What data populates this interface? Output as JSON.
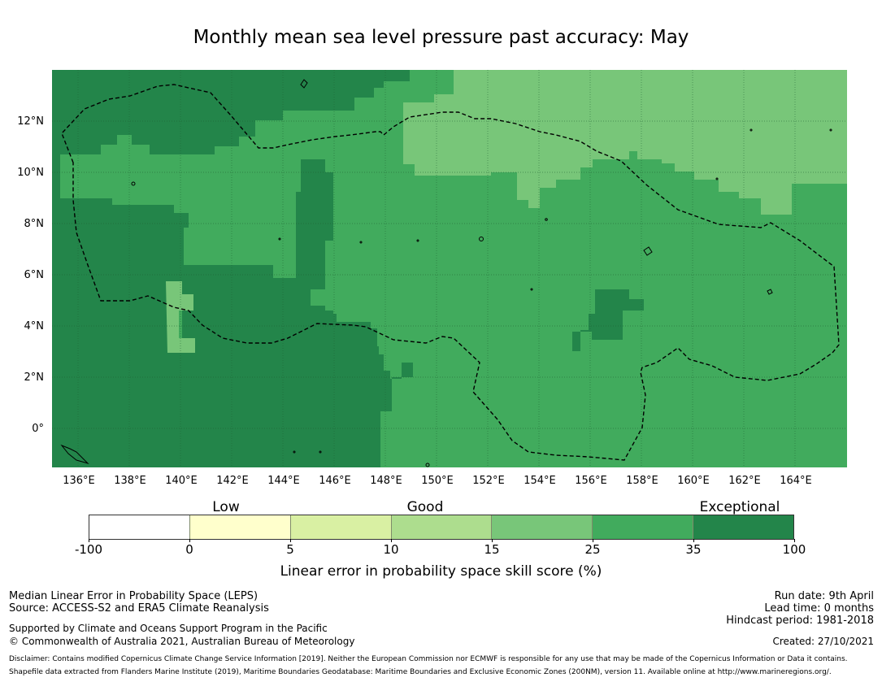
{
  "title": "Monthly mean sea level pressure past accuracy: May",
  "map": {
    "lat_ticks": [
      "12°N",
      "10°N",
      "8°N",
      "6°N",
      "4°N",
      "2°N",
      "0°"
    ],
    "lon_ticks": [
      "136°E",
      "138°E",
      "140°E",
      "142°E",
      "144°E",
      "146°E",
      "148°E",
      "150°E",
      "152°E",
      "154°E",
      "156°E",
      "158°E",
      "160°E",
      "162°E",
      "164°E"
    ],
    "extent": {
      "lon_min": 134.9,
      "lon_max": 165.9,
      "lat_min": -1.5,
      "lat_max": 14.0
    },
    "colors": {
      "skill_35_100": "#23854a",
      "skill_25_35": "#41ab5d",
      "skill_15_25": "#78c679",
      "border_line": "#000000",
      "gridline": "#1f5f32"
    }
  },
  "legend": {
    "categories": [
      {
        "label": "Low",
        "at_value": "0-5"
      },
      {
        "label": "Good",
        "at_value": "10-15"
      },
      {
        "label": "Exceptional",
        "at_value": "35-100"
      }
    ],
    "bins": [
      {
        "range": "-100 to 0",
        "color": "#ffffff"
      },
      {
        "range": "0 to 5",
        "color": "#ffffcc"
      },
      {
        "range": "5 to 10",
        "color": "#d9f0a3"
      },
      {
        "range": "10 to 15",
        "color": "#addd8e"
      },
      {
        "range": "15 to 25",
        "color": "#78c679"
      },
      {
        "range": "25 to 35",
        "color": "#41ab5d"
      },
      {
        "range": "35 to 100",
        "color": "#23854a"
      }
    ],
    "tick_labels": [
      "-100",
      "0",
      "5",
      "10",
      "15",
      "25",
      "35",
      "100"
    ],
    "title": "Linear error in probability space skill score (%)"
  },
  "footer": {
    "left": {
      "line1": "Median Linear Error in Probability Space (LEPS)",
      "line2": "Source: ACCESS-S2 and ERA5 Climate Reanalysis",
      "line3": "Supported by Climate and Oceans Support Program in the Pacific",
      "line4": "© Commonwealth of Australia 2021, Australian Bureau of Meteorology"
    },
    "right": {
      "run_date": "Run date: 9th April",
      "lead_time": "Lead time: 0 months",
      "hindcast": "Hindcast period: 1981-2018",
      "created": "Created: 27/10/2021"
    },
    "disclaimer1": "Disclaimer: Contains modified Copernicus Climate Change Service Information [2019]. Neither the European Commission nor ECMWF is responsible for any use that may be made of the Copernicus Information or Data it contains.",
    "disclaimer2": "Shapefile data extracted from Flanders Marine Institute (2019), Maritime Boundaries Geodatabase: Maritime Boundaries and Exclusive Economic Zones (200NM), version 11. Available online at http://www.marineregions.org/."
  }
}
